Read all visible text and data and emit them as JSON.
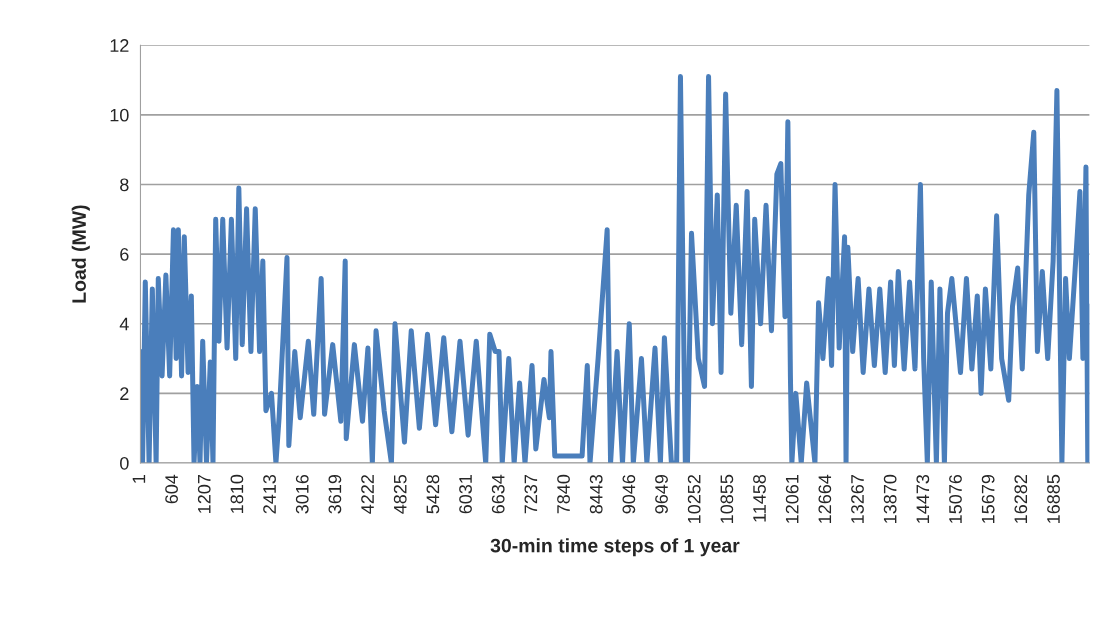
{
  "chart_data": {
    "type": "line",
    "xlabel": "30-min time steps of 1 year",
    "ylabel": "Load (MW)",
    "x": [
      1,
      40,
      90,
      160,
      220,
      290,
      330,
      400,
      470,
      540,
      610,
      660,
      700,
      760,
      810,
      880,
      940,
      990,
      1050,
      1100,
      1150,
      1220,
      1290,
      1340,
      1390,
      1450,
      1520,
      1600,
      1680,
      1760,
      1817,
      1880,
      1960,
      2040,
      2120,
      2200,
      2260,
      2317,
      2420,
      2502,
      2560,
      2706,
      2740,
      2850,
      2950,
      3100,
      3200,
      3337,
      3400,
      3550,
      3700,
      3781,
      3800,
      3950,
      4100,
      4200,
      4282,
      4350,
      4500,
      4634,
      4700,
      4875,
      5000,
      5150,
      5300,
      5450,
      5600,
      5750,
      5900,
      6050,
      6200,
      6375,
      6450,
      6550,
      6620,
      6680,
      6800,
      6900,
      7000,
      7100,
      7230,
      7300,
      7450,
      7550,
      7580,
      7650,
      8154,
      8250,
      8300,
      8450,
      8617,
      8680,
      8800,
      8900,
      9025,
      9100,
      9250,
      9350,
      9500,
      9600,
      9674,
      9803,
      9900,
      9970,
      10060,
      10100,
      10174,
      10300,
      10415,
      10489,
      10560,
      10650,
      10720,
      10804,
      10900,
      11000,
      11100,
      11200,
      11280,
      11341,
      11450,
      11550,
      11650,
      11750,
      11823,
      11900,
      11953,
      12000,
      12027,
      12100,
      12200,
      12300,
      12453,
      12520,
      12600,
      12700,
      12760,
      12824,
      12900,
      13000,
      13027,
      13060,
      13150,
      13250,
      13343,
      13450,
      13550,
      13650,
      13750,
      13850,
      13920,
      13992,
      14100,
      14200,
      14300,
      14400,
      14460,
      14528,
      14600,
      14695,
      14760,
      14843,
      14900,
      14980,
      15140,
      15250,
      15350,
      15450,
      15520,
      15600,
      15700,
      15807,
      15900,
      16030,
      16100,
      16196,
      16280,
      16400,
      16493,
      16560,
      16650,
      16750,
      16850,
      16920,
      17012,
      17080,
      17150,
      17250,
      17345,
      17400,
      17456,
      17490,
      17520
    ],
    "series": [
      {
        "color": "#4a7ebb",
        "values": [
          3.2,
          0,
          5.2,
          0,
          5.0,
          0,
          5.3,
          2.5,
          5.4,
          2.5,
          6.7,
          3.0,
          6.7,
          2.5,
          6.5,
          2.6,
          4.8,
          0,
          2.2,
          0,
          3.5,
          0,
          2.9,
          0,
          7.0,
          3.5,
          7.0,
          3.3,
          7.0,
          3.0,
          7.9,
          3.4,
          7.3,
          3.2,
          7.3,
          3.2,
          5.8,
          1.5,
          2.0,
          0,
          1.3,
          5.9,
          0.5,
          3.2,
          1.3,
          3.5,
          1.4,
          5.3,
          1.4,
          3.4,
          1.2,
          5.8,
          0.7,
          3.4,
          1.2,
          3.3,
          0,
          3.8,
          1.5,
          0,
          4.0,
          0.6,
          3.8,
          1.0,
          3.7,
          1.1,
          3.6,
          0.9,
          3.5,
          0.8,
          3.5,
          0,
          3.7,
          3.2,
          3.2,
          0,
          3.0,
          0,
          2.3,
          0,
          2.8,
          0.4,
          2.4,
          1.3,
          3.2,
          0.2,
          0.2,
          2.8,
          0,
          3.0,
          6.7,
          0,
          3.2,
          0,
          4.0,
          0,
          3.0,
          0,
          3.3,
          0,
          3.6,
          0,
          0,
          11.1,
          0,
          0,
          6.6,
          3.0,
          2.2,
          11.1,
          4.0,
          7.7,
          2.6,
          10.6,
          4.3,
          7.4,
          3.4,
          7.8,
          2.2,
          7.0,
          4.0,
          7.4,
          3.8,
          8.3,
          8.6,
          4.2,
          9.8,
          2.5,
          0,
          2.0,
          0,
          2.3,
          0,
          4.6,
          3.0,
          5.3,
          2.8,
          8.0,
          3.3,
          6.5,
          0,
          6.2,
          3.2,
          5.3,
          2.6,
          5.0,
          2.8,
          5.0,
          2.6,
          5.2,
          2.8,
          5.5,
          2.7,
          5.2,
          2.7,
          8.0,
          3.0,
          0,
          5.2,
          0,
          5.0,
          0,
          4.3,
          5.3,
          2.6,
          5.3,
          2.7,
          4.8,
          2.0,
          5.0,
          2.7,
          7.1,
          3.0,
          1.8,
          4.5,
          5.6,
          2.7,
          7.7,
          9.5,
          3.2,
          5.5,
          3.0,
          5.8,
          10.7,
          0,
          5.3,
          3.0,
          5.4,
          7.8,
          3.0,
          8.5,
          0,
          4.5
        ]
      }
    ],
    "xlim": [
      1,
      17520
    ],
    "xticks": [
      1,
      604,
      1207,
      1810,
      2413,
      3016,
      3619,
      4222,
      4825,
      5428,
      6031,
      6634,
      7237,
      7840,
      8443,
      9046,
      9649,
      10252,
      10855,
      11458,
      12061,
      12664,
      13267,
      13870,
      14473,
      15076,
      15679,
      16282,
      16885
    ],
    "ylim": [
      0,
      12
    ],
    "yticks": [
      0,
      2,
      4,
      6,
      8,
      10,
      12
    ],
    "grid": "y",
    "line_style": "solid"
  }
}
